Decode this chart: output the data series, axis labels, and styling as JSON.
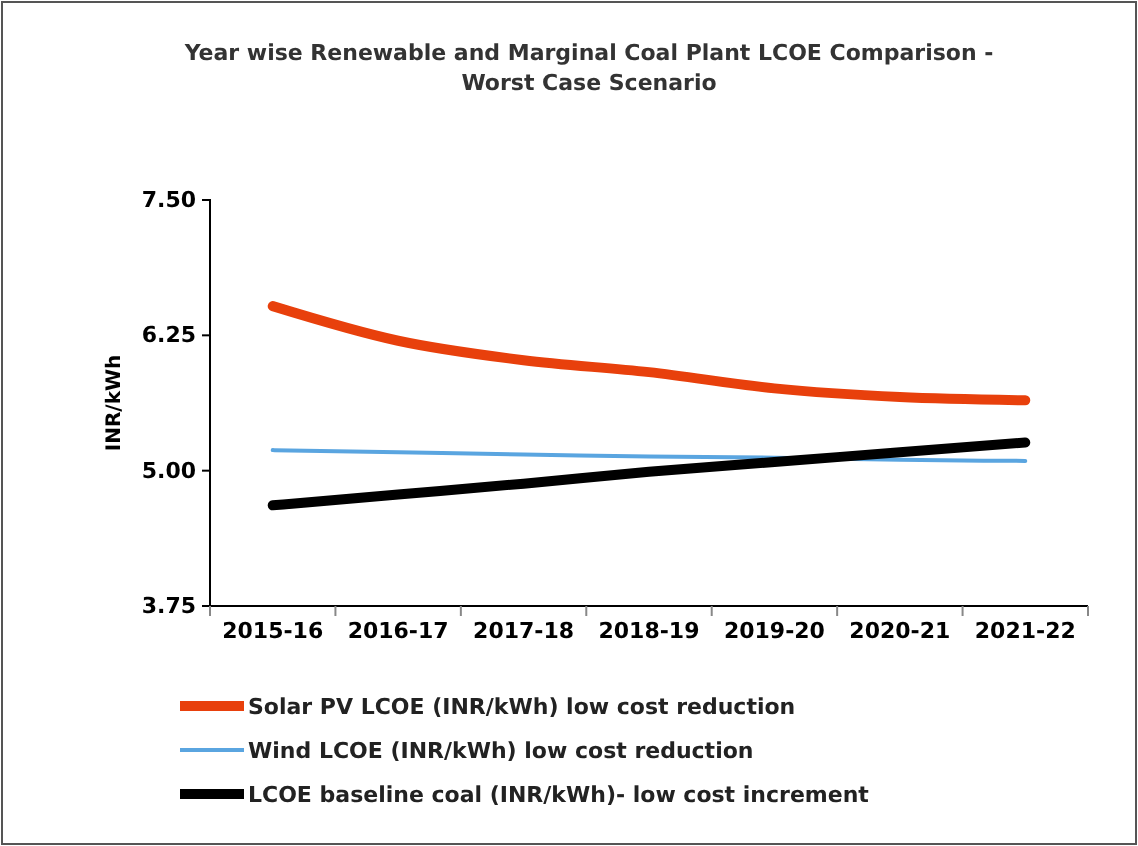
{
  "chart_data": {
    "type": "line",
    "title": "Year wise Renewable and Marginal Coal Plant LCOE Comparison - Worst Case Scenario",
    "ylabel": "INR/kWh",
    "categories": [
      "2015-16",
      "2016-17",
      "2017-18",
      "2018-19",
      "2019-20",
      "2020-21",
      "2021-22"
    ],
    "ylim": [
      3.75,
      7.5
    ],
    "yticks": [
      {
        "value": 3.75,
        "label": "3.75"
      },
      {
        "value": 5,
        "label": "5.00"
      },
      {
        "value": 6.25,
        "label": "6.25"
      },
      {
        "value": 7.5,
        "label": "7.50"
      }
    ],
    "grid": false,
    "legend": "bottom",
    "marker": "none",
    "series": [
      {
        "name": "Solar PV LCOE (INR/kWh) low cost reduction",
        "color": "#e8400c",
        "values": [
          6.52,
          6.2,
          6.02,
          5.91,
          5.76,
          5.68,
          5.65
        ]
      },
      {
        "name": "Wind LCOE (INR/kWh) low cost reduction",
        "color": "#5aa5e0",
        "values": [
          5.19,
          5.17,
          5.15,
          5.13,
          5.12,
          5.1,
          5.09
        ]
      },
      {
        "name": "LCOE baseline coal (INR/kWh)- low cost increment",
        "color": "#000000",
        "values": [
          4.68,
          4.78,
          4.88,
          4.99,
          5.08,
          5.17,
          5.26
        ]
      }
    ]
  }
}
